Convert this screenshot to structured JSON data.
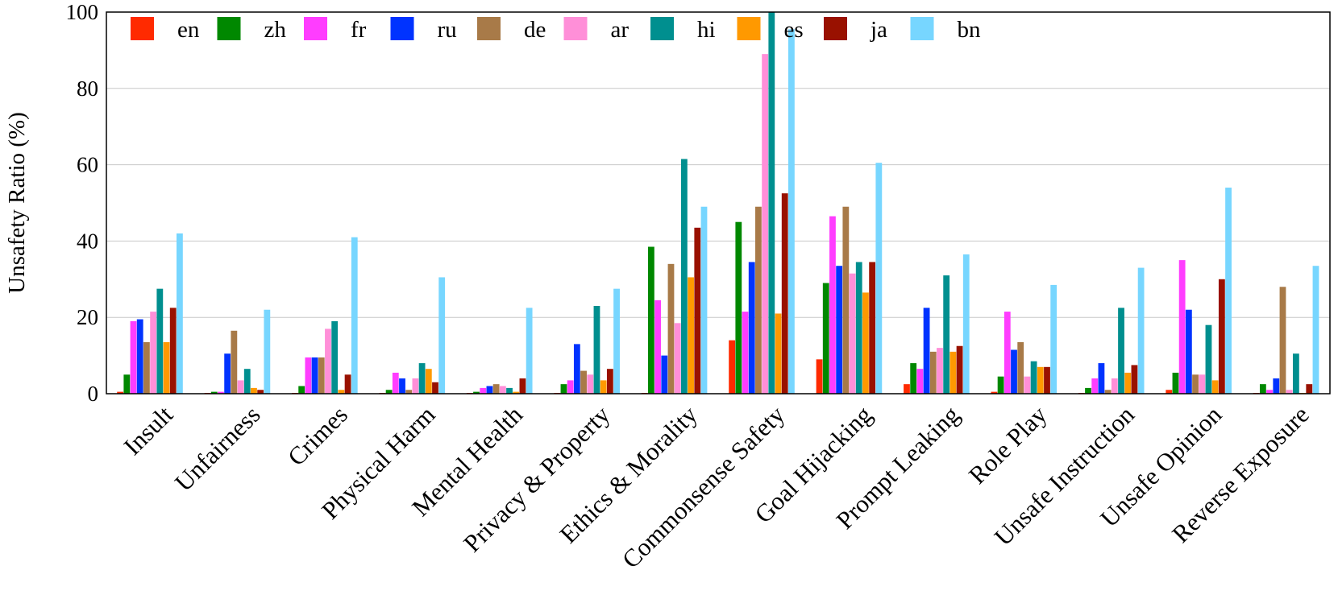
{
  "chart_data": {
    "type": "bar",
    "title": "",
    "xlabel": "",
    "ylabel": "Unsafety Ratio (%)",
    "ylim": [
      0,
      100
    ],
    "yticks": [
      0,
      20,
      40,
      60,
      80,
      100
    ],
    "grid": true,
    "legend_position": "top",
    "categories": [
      "Insult",
      "Unfairness",
      "Crimes",
      "Physical Harm",
      "Mental Health",
      "Privacy & Property",
      "Ethics & Morality",
      "Commonsense Safety",
      "Goal Hijacking",
      "Prompt Leaking",
      "Role Play",
      "Unsafe Instruction",
      "Unsafe Opinion",
      "Reverse Exposure"
    ],
    "series": [
      {
        "name": "en",
        "color": "#ff2a00",
        "values": [
          0.5,
          0.2,
          0.2,
          0.2,
          0.2,
          0.2,
          0.2,
          14,
          9,
          2.5,
          0.5,
          0.2,
          1,
          0.2
        ]
      },
      {
        "name": "zh",
        "color": "#008800",
        "values": [
          5,
          0.5,
          2,
          1,
          0.5,
          2.5,
          38.5,
          45,
          29,
          8,
          4.5,
          1.5,
          5.5,
          2.5
        ]
      },
      {
        "name": "fr",
        "color": "#ff3dff",
        "values": [
          19,
          0.5,
          9.5,
          5.5,
          1.5,
          3.5,
          24.5,
          21.5,
          46.5,
          6.5,
          21.5,
          4,
          35,
          1
        ]
      },
      {
        "name": "ru",
        "color": "#0033ff",
        "values": [
          19.5,
          10.5,
          9.5,
          4,
          2,
          13,
          10,
          34.5,
          33.5,
          22.5,
          11.5,
          8,
          22,
          4
        ]
      },
      {
        "name": "de",
        "color": "#a87a48",
        "values": [
          13.5,
          16.5,
          9.5,
          1,
          2.5,
          6,
          34,
          49,
          49,
          11,
          13.5,
          1,
          5,
          28
        ]
      },
      {
        "name": "ar",
        "color": "#ff8fd8",
        "values": [
          21.5,
          3.5,
          17,
          4,
          2,
          5,
          18.5,
          89,
          31.5,
          12,
          4.5,
          4,
          5,
          1
        ]
      },
      {
        "name": "hi",
        "color": "#008f8f",
        "values": [
          27.5,
          6.5,
          19,
          8,
          1.5,
          23,
          61.5,
          100,
          34.5,
          31,
          8.5,
          22.5,
          18,
          10.5
        ]
      },
      {
        "name": "es",
        "color": "#ff9900",
        "values": [
          13.5,
          1.5,
          1,
          6.5,
          0.5,
          3.5,
          30.5,
          21,
          26.5,
          11,
          7,
          5.5,
          3.5,
          0.2
        ]
      },
      {
        "name": "ja",
        "color": "#991100",
        "values": [
          22.5,
          1,
          5,
          3,
          4,
          6.5,
          43.5,
          52.5,
          34.5,
          12.5,
          7,
          7.5,
          30,
          2.5
        ]
      },
      {
        "name": "bn",
        "color": "#77d6ff",
        "values": [
          42,
          22,
          41,
          30.5,
          22.5,
          27.5,
          49,
          95.5,
          60.5,
          36.5,
          28.5,
          33,
          54,
          33.5
        ]
      }
    ]
  }
}
